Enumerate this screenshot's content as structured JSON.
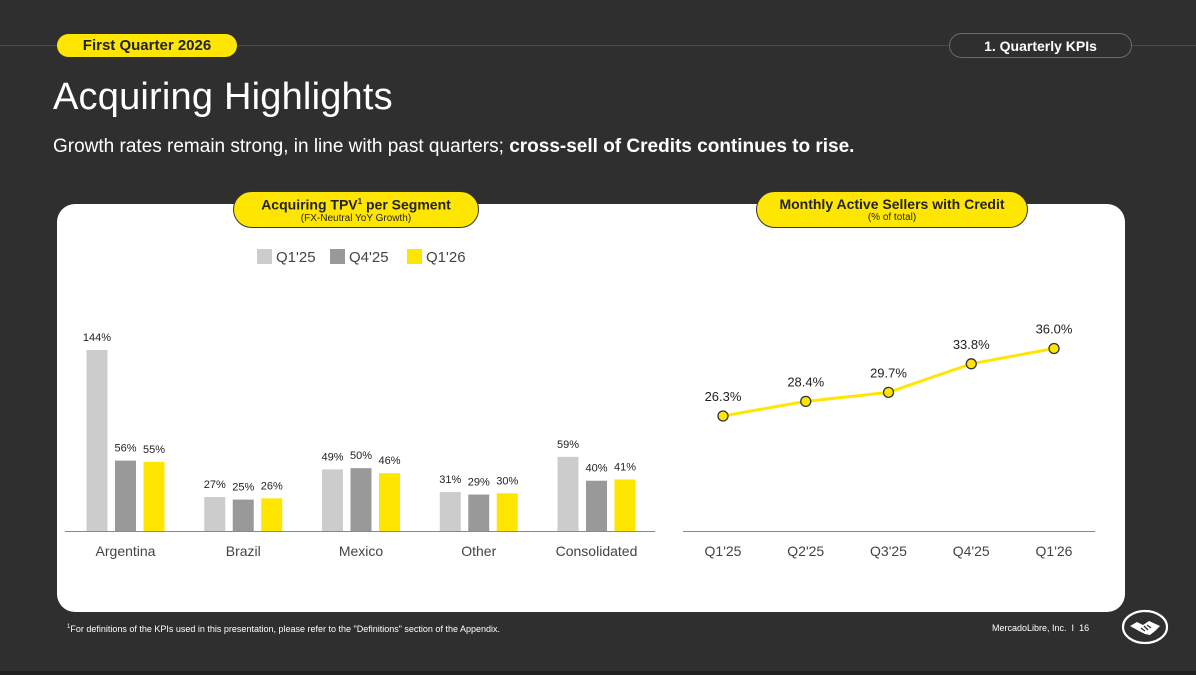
{
  "header": {
    "period_label": "First Quarter 2026",
    "section_label": "1. Quarterly KPIs",
    "title": "Acquiring Highlights",
    "subtitle_regular": "Growth rates remain strong, in line with past quarters; ",
    "subtitle_bold": "cross-sell of Credits continues to rise."
  },
  "chart_data": [
    {
      "type": "bar",
      "title": "Acquiring TPV",
      "title_sup": "1",
      "title_suffix": " per Segment",
      "subtitle": "(FX-Neutral YoY Growth)",
      "categories": [
        "Argentina",
        "Brazil",
        "Mexico",
        "Other",
        "Consolidated"
      ],
      "series": [
        {
          "name": "Q1'25",
          "color": "#cccccc",
          "values": [
            144,
            27,
            49,
            31,
            59
          ],
          "labels": [
            "144%",
            "27%",
            "49%",
            "31%",
            "59%"
          ]
        },
        {
          "name": "Q4'25",
          "color": "#999999",
          "values": [
            56,
            25,
            50,
            29,
            40
          ],
          "labels": [
            "56%",
            "25%",
            "50%",
            "29%",
            "40%"
          ]
        },
        {
          "name": "Q1'26",
          "color": "#ffe600",
          "values": [
            55,
            26,
            46,
            30,
            41
          ],
          "labels": [
            "55%",
            "26%",
            "46%",
            "30%",
            "41%"
          ]
        }
      ],
      "legend_position": "top",
      "ylim": [
        0,
        150
      ]
    },
    {
      "type": "line",
      "title": "Monthly Active Sellers with Credit",
      "subtitle": "(% of total)",
      "categories": [
        "Q1'25",
        "Q2'25",
        "Q3'25",
        "Q4'25",
        "Q1'26"
      ],
      "values": [
        26.3,
        28.4,
        29.7,
        33.8,
        36.0
      ],
      "labels": [
        "26.3%",
        "28.4%",
        "29.7%",
        "33.8%",
        "36.0%"
      ],
      "color": "#ffe600",
      "ylim": [
        0,
        40
      ]
    }
  ],
  "footer": {
    "footnote_sup": "1",
    "footnote": "For definitions of the KPIs used in this presentation, please refer to the \"Definitions\" section of the Appendix.",
    "company": "MercadoLibre, Inc.",
    "page_number": "16"
  }
}
